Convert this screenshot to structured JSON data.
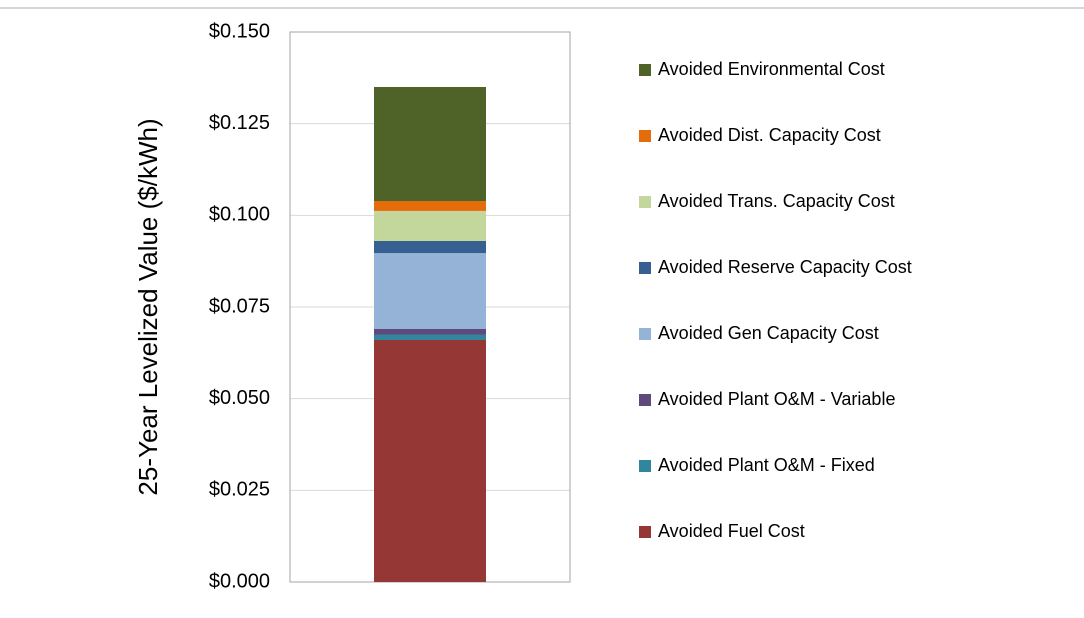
{
  "chart_data": {
    "type": "stacked_bar",
    "y_label": "25-Year Levelized Value ($/kWh)",
    "categories": [
      null
    ],
    "series": [
      {
        "name": "Avoided Fuel Cost",
        "color": "#953735",
        "values": [
          0.066
        ]
      },
      {
        "name": "Avoided Plant O&M - Fixed",
        "color": "#31859c",
        "values": [
          0.0015
        ]
      },
      {
        "name": "Avoided Plant O&M - Variable",
        "color": "#604a7b",
        "values": [
          0.0015
        ]
      },
      {
        "name": "Avoided Gen Capacity Cost",
        "color": "#95b3d7",
        "values": [
          0.0207
        ]
      },
      {
        "name": "Avoided Reserve Capacity Cost",
        "color": "#376092",
        "values": [
          0.0033
        ]
      },
      {
        "name": "Avoided Trans. Capacity Cost",
        "color": "#c3d69b",
        "values": [
          0.0082
        ]
      },
      {
        "name": "Avoided Dist. Capacity Cost",
        "color": "#e46c0a",
        "values": [
          0.0027
        ]
      },
      {
        "name": "Avoided Environmental Cost",
        "color": "#4f6228",
        "values": [
          0.0311
        ]
      }
    ],
    "ylim": [
      0,
      0.15
    ],
    "yticks": [
      {
        "value": 0,
        "label": "$0.000"
      },
      {
        "value": 0.025,
        "label": "$0.025"
      },
      {
        "value": 0.05,
        "label": "$0.050"
      },
      {
        "value": 0.075,
        "label": "$0.075"
      },
      {
        "value": 0.1,
        "label": "$0.100"
      },
      {
        "value": 0.125,
        "label": "$0.125"
      },
      {
        "value": 0.15,
        "label": "$0.150"
      }
    ],
    "grid": true,
    "legend": "right"
  }
}
